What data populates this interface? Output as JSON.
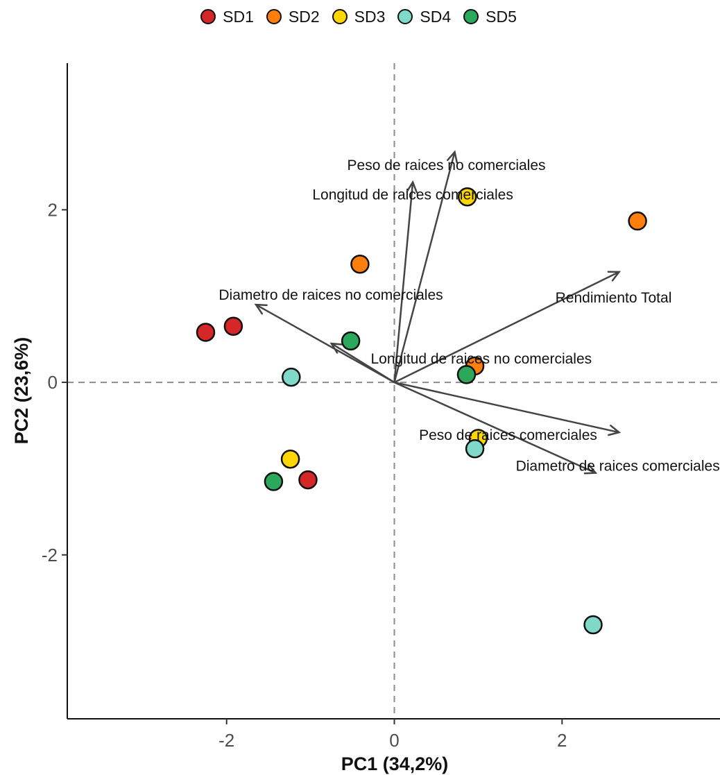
{
  "chart_data": {
    "type": "scatter",
    "title": "",
    "xlabel": "PC1 (34,2%)",
    "ylabel": "PC2 (23,6%)",
    "xlim": [
      -3.9,
      3.9
    ],
    "ylim": [
      -3.9,
      3.7
    ],
    "x_ticks": [
      {
        "value": -2,
        "label": "-2"
      },
      {
        "value": 0,
        "label": "0"
      },
      {
        "value": 2,
        "label": "2"
      }
    ],
    "y_ticks": [
      {
        "value": -2,
        "label": "-2"
      },
      {
        "value": 0,
        "label": "0"
      },
      {
        "value": 2,
        "label": "2"
      }
    ],
    "reference_lines": {
      "x": 0,
      "y": 0,
      "style": "dashed"
    },
    "legend": {
      "position": "top"
    },
    "series": [
      {
        "name": "SD1",
        "color": "#d62728",
        "points": [
          {
            "x": -2.25,
            "y": 0.58
          },
          {
            "x": -1.92,
            "y": 0.65
          },
          {
            "x": -1.03,
            "y": -1.13
          }
        ]
      },
      {
        "name": "SD2",
        "color": "#ff7f0e",
        "points": [
          {
            "x": 2.9,
            "y": 1.87
          },
          {
            "x": -0.41,
            "y": 1.37
          },
          {
            "x": 0.96,
            "y": 0.19
          }
        ]
      },
      {
        "name": "SD3",
        "color": "#ffd700",
        "points": [
          {
            "x": 0.87,
            "y": 2.15
          },
          {
            "x": -1.24,
            "y": -0.89
          },
          {
            "x": 1.0,
            "y": -0.65
          }
        ]
      },
      {
        "name": "SD4",
        "color": "#7fd8c8",
        "points": [
          {
            "x": -1.23,
            "y": 0.06
          },
          {
            "x": 0.96,
            "y": -0.77
          },
          {
            "x": 2.37,
            "y": -2.81
          }
        ]
      },
      {
        "name": "SD5",
        "color": "#2ca85c",
        "points": [
          {
            "x": -0.52,
            "y": 0.48
          },
          {
            "x": 0.86,
            "y": 0.09
          },
          {
            "x": -1.44,
            "y": -1.15
          }
        ]
      }
    ],
    "loadings": [
      {
        "label": "Peso de raices no comerciales",
        "x": 0.72,
        "y": 2.67
      },
      {
        "label": "Longitud de raices comerciales",
        "x": 0.22,
        "y": 2.32
      },
      {
        "label": "Rendimiento Total",
        "x": 2.68,
        "y": 1.28
      },
      {
        "label": "Diametro de raices no comerciales",
        "x": -1.65,
        "y": 0.9
      },
      {
        "label": "Longitud de raices no comerciales",
        "x": -0.75,
        "y": 0.45
      },
      {
        "label": "Peso de raices comerciales",
        "x": 2.68,
        "y": -0.58
      },
      {
        "label": "Diametro de raices comerciales",
        "x": 2.4,
        "y": -1.05
      }
    ]
  }
}
